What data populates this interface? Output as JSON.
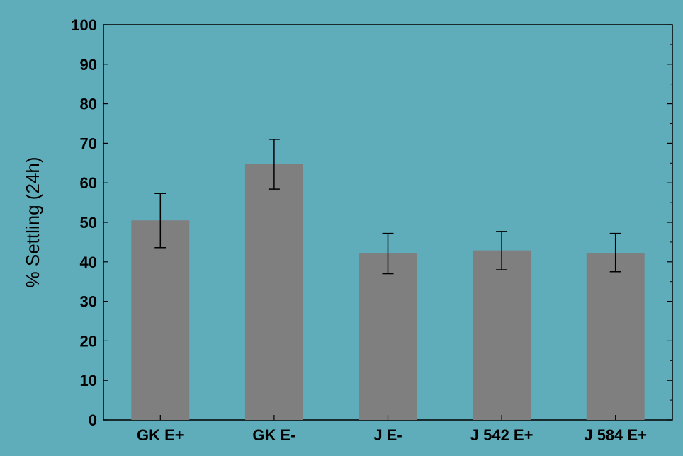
{
  "colors": {
    "background": "#5fadbb",
    "bar": "#7f7f7f",
    "axis": "#000000"
  },
  "chart_data": {
    "type": "bar",
    "title": "",
    "xlabel": "",
    "ylabel": "% Settling (24h)",
    "ylim": [
      0,
      100
    ],
    "yticks": [
      0,
      10,
      20,
      30,
      40,
      50,
      60,
      70,
      80,
      90,
      100
    ],
    "grid": false,
    "categories": [
      "GK E+",
      "GK E-",
      "J E-",
      "J 542 E+",
      "J 584 E+"
    ],
    "values": [
      50.5,
      64.7,
      42.1,
      42.9,
      42.1
    ],
    "error_low": [
      43.6,
      58.4,
      37.0,
      38.0,
      37.5
    ],
    "error_high": [
      57.3,
      71.0,
      47.2,
      47.7,
      47.2
    ]
  }
}
